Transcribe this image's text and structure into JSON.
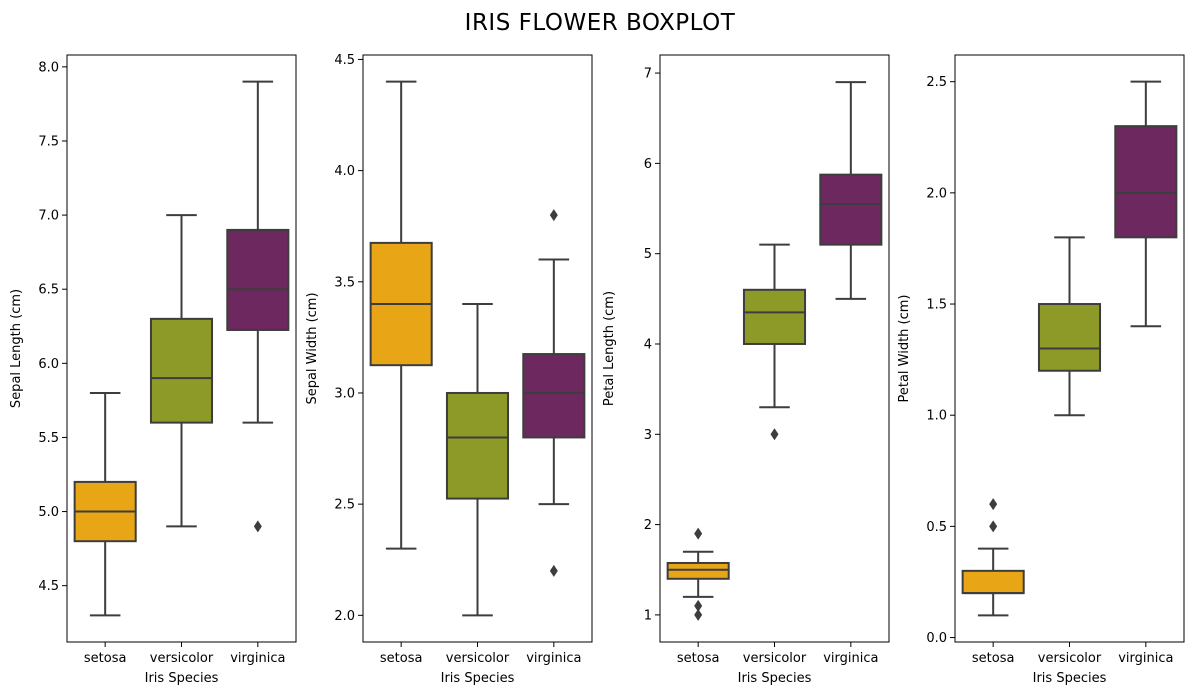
{
  "figure": {
    "title": "IRIS FLOWER BOXPLOT"
  },
  "chart_data": [
    {
      "type": "box",
      "categories": [
        "setosa",
        "versicolor",
        "virginica"
      ],
      "colors": [
        "#e8a617",
        "#8e9a28",
        "#6d2860"
      ],
      "xlabel": "Iris Species",
      "ylabel": "Sepal Length (cm)",
      "ylim": [
        4.12,
        8.08
      ],
      "yticks": [
        4.5,
        5.0,
        5.5,
        6.0,
        6.5,
        7.0,
        7.5,
        8.0
      ],
      "ytick_labels": [
        "4.5",
        "5.0",
        "5.5",
        "6.0",
        "6.5",
        "7.0",
        "7.5",
        "8.0"
      ],
      "series": [
        {
          "whisker_low": 4.3,
          "q1": 4.8,
          "median": 5.0,
          "q3": 5.2,
          "whisker_high": 5.8,
          "outliers": []
        },
        {
          "whisker_low": 4.9,
          "q1": 5.6,
          "median": 5.9,
          "q3": 6.3,
          "whisker_high": 7.0,
          "outliers": []
        },
        {
          "whisker_low": 5.6,
          "q1": 6.225,
          "median": 6.5,
          "q3": 6.9,
          "whisker_high": 7.9,
          "outliers": [
            4.9
          ]
        }
      ]
    },
    {
      "type": "box",
      "categories": [
        "setosa",
        "versicolor",
        "virginica"
      ],
      "colors": [
        "#e8a617",
        "#8e9a28",
        "#6d2860"
      ],
      "xlabel": "Iris Species",
      "ylabel": "Sepal Width (cm)",
      "ylim": [
        1.88,
        4.52
      ],
      "yticks": [
        2.0,
        2.5,
        3.0,
        3.5,
        4.0,
        4.5
      ],
      "ytick_labels": [
        "2.0",
        "2.5",
        "3.0",
        "3.5",
        "4.0",
        "4.5"
      ],
      "series": [
        {
          "whisker_low": 2.3,
          "q1": 3.125,
          "median": 3.4,
          "q3": 3.675,
          "whisker_high": 4.4,
          "outliers": []
        },
        {
          "whisker_low": 2.0,
          "q1": 2.525,
          "median": 2.8,
          "q3": 3.0,
          "whisker_high": 3.4,
          "outliers": []
        },
        {
          "whisker_low": 2.5,
          "q1": 2.8,
          "median": 3.0,
          "q3": 3.175,
          "whisker_high": 3.6,
          "outliers": [
            3.8,
            2.2
          ]
        }
      ]
    },
    {
      "type": "box",
      "categories": [
        "setosa",
        "versicolor",
        "virginica"
      ],
      "colors": [
        "#e8a617",
        "#8e9a28",
        "#6d2860"
      ],
      "xlabel": "Iris Species",
      "ylabel": "Petal Length (cm)",
      "ylim": [
        0.7,
        7.2
      ],
      "yticks": [
        1,
        2,
        3,
        4,
        5,
        6,
        7
      ],
      "ytick_labels": [
        "1",
        "2",
        "3",
        "4",
        "5",
        "6",
        "7"
      ],
      "series": [
        {
          "whisker_low": 1.2,
          "q1": 1.4,
          "median": 1.5,
          "q3": 1.575,
          "whisker_high": 1.7,
          "outliers": [
            1.9,
            1.1,
            1.0
          ]
        },
        {
          "whisker_low": 3.3,
          "q1": 4.0,
          "median": 4.35,
          "q3": 4.6,
          "whisker_high": 5.1,
          "outliers": [
            3.0
          ]
        },
        {
          "whisker_low": 4.5,
          "q1": 5.1,
          "median": 5.55,
          "q3": 5.875,
          "whisker_high": 6.9,
          "outliers": []
        }
      ]
    },
    {
      "type": "box",
      "categories": [
        "setosa",
        "versicolor",
        "virginica"
      ],
      "colors": [
        "#e8a617",
        "#8e9a28",
        "#6d2860"
      ],
      "xlabel": "Iris Species",
      "ylabel": "Petal Width (cm)",
      "ylim": [
        -0.02,
        2.62
      ],
      "yticks": [
        0.0,
        0.5,
        1.0,
        1.5,
        2.0,
        2.5
      ],
      "ytick_labels": [
        "0.0",
        "0.5",
        "1.0",
        "1.5",
        "2.0",
        "2.5"
      ],
      "series": [
        {
          "whisker_low": 0.1,
          "q1": 0.2,
          "median": 0.2,
          "q3": 0.3,
          "whisker_high": 0.4,
          "outliers": [
            0.6,
            0.5
          ]
        },
        {
          "whisker_low": 1.0,
          "q1": 1.2,
          "median": 1.3,
          "q3": 1.5,
          "whisker_high": 1.8,
          "outliers": []
        },
        {
          "whisker_low": 1.4,
          "q1": 1.8,
          "median": 2.0,
          "q3": 2.3,
          "whisker_high": 2.5,
          "outliers": []
        }
      ]
    }
  ]
}
